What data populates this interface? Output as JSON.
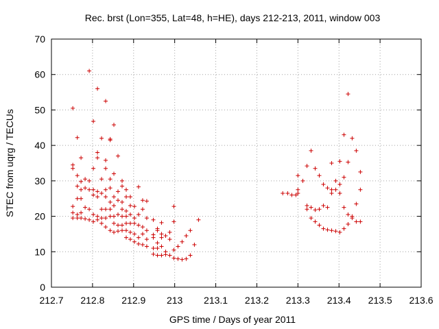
{
  "chart_data": {
    "type": "scatter",
    "title": "Rec. brst (Lon=355, Lat=48, h=HE), days 212-213, 2011, window 003",
    "xlabel": "GPS time / Days of year 2011",
    "ylabel": "STEC from uqrg / TECUs",
    "xlim": [
      212.7,
      213.6
    ],
    "ylim": [
      0,
      70
    ],
    "xticks": [
      "212.7",
      "212.8",
      "212.9",
      "213",
      "213.1",
      "213.2",
      "213.3",
      "213.4",
      "213.5",
      "213.6"
    ],
    "yticks": [
      "0",
      "10",
      "20",
      "30",
      "40",
      "50",
      "60",
      "70"
    ],
    "grid": true,
    "marker": "plus",
    "color": "#cc0000",
    "points": [
      [
        212.752,
        50.5
      ],
      [
        212.752,
        34.5
      ],
      [
        212.752,
        33.5
      ],
      [
        212.752,
        22.8
      ],
      [
        212.752,
        21.0
      ],
      [
        212.752,
        19.5
      ],
      [
        212.763,
        42.2
      ],
      [
        212.763,
        31.5
      ],
      [
        212.763,
        28.5
      ],
      [
        212.763,
        25.0
      ],
      [
        212.763,
        20.5
      ],
      [
        212.763,
        19.5
      ],
      [
        212.772,
        36.5
      ],
      [
        212.772,
        29.8
      ],
      [
        212.772,
        27.5
      ],
      [
        212.772,
        25.0
      ],
      [
        212.772,
        21.0
      ],
      [
        212.772,
        19.5
      ],
      [
        212.782,
        30.5
      ],
      [
        212.782,
        28.0
      ],
      [
        212.782,
        22.5
      ],
      [
        212.782,
        19.3
      ],
      [
        212.792,
        61.0
      ],
      [
        212.792,
        30.0
      ],
      [
        212.792,
        27.5
      ],
      [
        212.792,
        22.0
      ],
      [
        212.792,
        19.0
      ],
      [
        212.802,
        46.8
      ],
      [
        212.802,
        33.5
      ],
      [
        212.802,
        27.5
      ],
      [
        212.802,
        26.0
      ],
      [
        212.802,
        20.5
      ],
      [
        212.802,
        18.5
      ],
      [
        212.812,
        56.0
      ],
      [
        212.812,
        38.0
      ],
      [
        212.812,
        36.5
      ],
      [
        212.812,
        27.0
      ],
      [
        212.812,
        25.5
      ],
      [
        212.812,
        20.0
      ],
      [
        212.812,
        19.0
      ],
      [
        212.822,
        42.0
      ],
      [
        212.822,
        30.5
      ],
      [
        212.822,
        26.5
      ],
      [
        212.822,
        22.0
      ],
      [
        212.822,
        19.5
      ],
      [
        212.822,
        18.0
      ],
      [
        212.832,
        52.5
      ],
      [
        212.832,
        35.8
      ],
      [
        212.832,
        33.5
      ],
      [
        212.832,
        27.5
      ],
      [
        212.832,
        25.5
      ],
      [
        212.832,
        22.0
      ],
      [
        212.832,
        19.5
      ],
      [
        212.832,
        17.0
      ],
      [
        212.843,
        41.8
      ],
      [
        212.843,
        41.5
      ],
      [
        212.843,
        30.5
      ],
      [
        212.843,
        28.0
      ],
      [
        212.843,
        24.0
      ],
      [
        212.843,
        22.0
      ],
      [
        212.843,
        20.0
      ],
      [
        212.843,
        16.0
      ],
      [
        212.852,
        45.8
      ],
      [
        212.852,
        32.0
      ],
      [
        212.852,
        25.5
      ],
      [
        212.852,
        23.0
      ],
      [
        212.852,
        20.0
      ],
      [
        212.852,
        18.0
      ],
      [
        212.852,
        15.5
      ],
      [
        212.862,
        37.0
      ],
      [
        212.862,
        27.0
      ],
      [
        212.862,
        24.5
      ],
      [
        212.862,
        20.5
      ],
      [
        212.862,
        17.5
      ],
      [
        212.862,
        15.8
      ],
      [
        212.872,
        30.0
      ],
      [
        212.872,
        28.5
      ],
      [
        212.872,
        24.0
      ],
      [
        212.872,
        22.0
      ],
      [
        212.872,
        20.0
      ],
      [
        212.872,
        17.5
      ],
      [
        212.872,
        16.0
      ],
      [
        212.882,
        27.5
      ],
      [
        212.882,
        25.5
      ],
      [
        212.882,
        21.5
      ],
      [
        212.882,
        20.0
      ],
      [
        212.882,
        18.0
      ],
      [
        212.882,
        16.0
      ],
      [
        212.882,
        14.0
      ],
      [
        212.892,
        25.5
      ],
      [
        212.892,
        23.0
      ],
      [
        212.892,
        20.5
      ],
      [
        212.892,
        18.0
      ],
      [
        212.892,
        15.5
      ],
      [
        212.892,
        13.5
      ],
      [
        212.902,
        22.8
      ],
      [
        212.902,
        19.5
      ],
      [
        212.902,
        18.0
      ],
      [
        212.902,
        15.0
      ],
      [
        212.902,
        12.8
      ],
      [
        212.912,
        28.3
      ],
      [
        212.912,
        20.5
      ],
      [
        212.912,
        17.5
      ],
      [
        212.912,
        14.0
      ],
      [
        212.912,
        12.2
      ],
      [
        212.922,
        24.5
      ],
      [
        212.922,
        22.0
      ],
      [
        212.922,
        17.0
      ],
      [
        212.922,
        15.0
      ],
      [
        212.922,
        12.0
      ],
      [
        212.932,
        24.3
      ],
      [
        212.932,
        19.5
      ],
      [
        212.932,
        16.0
      ],
      [
        212.932,
        13.5
      ],
      [
        212.932,
        11.5
      ],
      [
        212.948,
        19.0
      ],
      [
        212.948,
        14.8
      ],
      [
        212.948,
        14.0
      ],
      [
        212.948,
        11.0
      ],
      [
        212.948,
        9.3
      ],
      [
        212.958,
        16.5
      ],
      [
        212.958,
        16.0
      ],
      [
        212.958,
        12.5
      ],
      [
        212.958,
        11.0
      ],
      [
        212.958,
        9.0
      ],
      [
        212.968,
        18.2
      ],
      [
        212.968,
        15.0
      ],
      [
        212.968,
        14.0
      ],
      [
        212.968,
        11.5
      ],
      [
        212.968,
        9.0
      ],
      [
        212.978,
        14.5
      ],
      [
        212.978,
        10.0
      ],
      [
        212.978,
        9.2
      ],
      [
        212.988,
        15.5
      ],
      [
        212.988,
        13.5
      ],
      [
        212.988,
        9.0
      ],
      [
        212.998,
        22.8
      ],
      [
        212.998,
        18.5
      ],
      [
        212.998,
        10.5
      ],
      [
        212.998,
        8.2
      ],
      [
        213.008,
        11.5
      ],
      [
        213.008,
        8.0
      ],
      [
        213.018,
        12.8
      ],
      [
        213.018,
        7.8
      ],
      [
        213.028,
        14.5
      ],
      [
        213.028,
        8.0
      ],
      [
        213.038,
        16.0
      ],
      [
        213.038,
        9.0
      ],
      [
        213.048,
        12.0
      ],
      [
        213.058,
        19.0
      ],
      [
        213.263,
        26.5
      ],
      [
        213.275,
        26.5
      ],
      [
        213.285,
        26.0
      ],
      [
        213.295,
        26.0
      ],
      [
        213.3,
        31.5
      ],
      [
        213.3,
        27.5
      ],
      [
        213.3,
        26.5
      ],
      [
        213.312,
        30.0
      ],
      [
        213.322,
        34.2
      ],
      [
        213.322,
        23.0
      ],
      [
        213.322,
        22.0
      ],
      [
        213.332,
        38.5
      ],
      [
        213.332,
        22.5
      ],
      [
        213.332,
        19.5
      ],
      [
        213.342,
        33.5
      ],
      [
        213.342,
        21.8
      ],
      [
        213.342,
        18.5
      ],
      [
        213.352,
        31.5
      ],
      [
        213.352,
        22.0
      ],
      [
        213.352,
        17.5
      ],
      [
        213.362,
        29.0
      ],
      [
        213.362,
        23.0
      ],
      [
        213.362,
        16.5
      ],
      [
        213.372,
        28.0
      ],
      [
        213.372,
        22.5
      ],
      [
        213.372,
        16.2
      ],
      [
        213.382,
        35.0
      ],
      [
        213.382,
        27.5
      ],
      [
        213.382,
        26.5
      ],
      [
        213.382,
        16.0
      ],
      [
        213.392,
        30.0
      ],
      [
        213.392,
        27.5
      ],
      [
        213.392,
        15.8
      ],
      [
        213.402,
        35.5
      ],
      [
        213.402,
        29.0
      ],
      [
        213.402,
        26.5
      ],
      [
        213.402,
        15.5
      ],
      [
        213.412,
        43.0
      ],
      [
        213.412,
        31.0
      ],
      [
        213.412,
        22.5
      ],
      [
        213.412,
        16.5
      ],
      [
        213.422,
        54.5
      ],
      [
        213.422,
        35.3
      ],
      [
        213.422,
        20.5
      ],
      [
        213.422,
        17.8
      ],
      [
        213.432,
        42.0
      ],
      [
        213.432,
        20.0
      ],
      [
        213.432,
        19.5
      ],
      [
        213.442,
        38.5
      ],
      [
        213.442,
        23.5
      ],
      [
        213.442,
        18.5
      ],
      [
        213.452,
        32.5
      ],
      [
        213.452,
        27.5
      ],
      [
        213.452,
        18.5
      ]
    ]
  }
}
